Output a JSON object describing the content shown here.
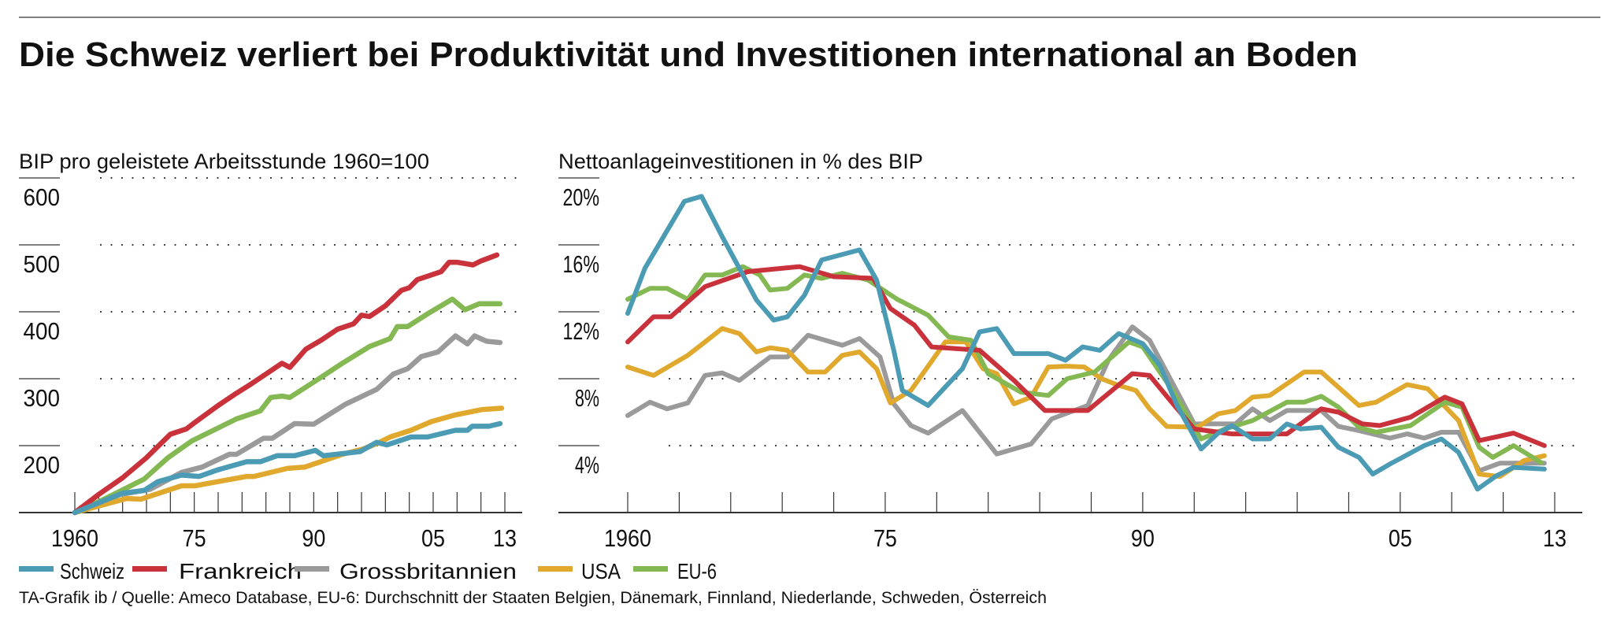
{
  "title": "Die Schweiz verliert bei Produktivität und Investitionen international an Boden",
  "legend": [
    {
      "name": "Schweiz",
      "color": "#4b9bb5"
    },
    {
      "name": "Frankreich",
      "color": "#c9323b"
    },
    {
      "name": "Grossbritannien",
      "color": "#9a9a9a"
    },
    {
      "name": "USA",
      "color": "#e0a82c"
    },
    {
      "name": "EU-6",
      "color": "#84b852"
    }
  ],
  "source": "TA-Grafik ib / Quelle: Ameco Database, EU-6: Durchschnitt der Staaten Belgien, Dänemark, Finnland, Niederlande, Schweden, Österreich",
  "chart_data": [
    {
      "type": "line",
      "title": "BIP pro geleistete Arbeitsstunde 1960=100",
      "ylim": [
        100,
        600
      ],
      "yticks": [
        200,
        300,
        400,
        500,
        600
      ],
      "ytick_labels": [
        "200",
        "300",
        "400",
        "500",
        "600"
      ],
      "xlim": [
        1960,
        2014
      ],
      "xticks": [
        1960,
        1975,
        1990,
        2005,
        2013
      ],
      "xtick_labels": [
        "1960",
        "75",
        "90",
        "05",
        "13"
      ],
      "grid": "dotted horizontal",
      "series": [
        {
          "name": "Schweiz",
          "x": [
            1960,
            1966,
            1968.7,
            1970.4,
            1973.4,
            1975.6,
            1978,
            1981.6,
            1983.3,
            1985.4,
            1987.6,
            1990.2,
            1991.2,
            1995.8,
            1997.9,
            1999.2,
            2002.2,
            2004.3,
            2007.8,
            2009.3,
            2009.9,
            2012,
            2013.4
          ],
          "y": [
            100,
            129,
            133,
            146,
            156,
            154,
            164,
            176,
            176,
            185,
            185,
            193,
            185,
            191,
            205,
            201,
            213,
            213,
            223,
            223,
            229,
            229,
            233
          ]
        },
        {
          "name": "Frankreich",
          "x": [
            1960,
            1963,
            1966,
            1969,
            1972,
            1974,
            1975,
            1978,
            1980,
            1982,
            1984,
            1986,
            1987,
            1989,
            1991,
            1993,
            1995,
            1996,
            1997,
            1999,
            2001,
            2002,
            2003,
            2005,
            2006,
            2007,
            2008,
            2010,
            2011,
            2013
          ],
          "y": [
            100,
            127,
            152,
            182,
            217,
            225,
            234,
            260,
            276,
            291,
            307,
            323,
            317,
            344,
            358,
            374,
            382,
            395,
            393,
            409,
            432,
            436,
            448,
            456,
            460,
            474,
            474,
            470,
            476,
            485
          ]
        },
        {
          "name": "Grossbritannien",
          "x": [
            1960,
            1965.7,
            1969.5,
            1973.4,
            1976,
            1979.4,
            1980.3,
            1983.7,
            1984.8,
            1987.6,
            1990,
            1994,
            1997.9,
            2000,
            2001.8,
            2003.5,
            2005.6,
            2007.8,
            2009.3,
            2010.2,
            2011.7,
            2013.4
          ],
          "y": [
            100,
            127,
            135,
            160,
            168,
            187,
            187,
            211,
            211,
            233,
            232,
            262,
            284,
            307,
            315,
            333,
            340,
            364,
            352,
            364,
            356,
            354
          ]
        },
        {
          "name": "USA",
          "x": [
            1960,
            1966.5,
            1968.3,
            1973.4,
            1975.1,
            1981.6,
            1982.5,
            1986.7,
            1988.9,
            1993.6,
            1996.2,
            1997.9,
            1999.6,
            2002.2,
            2004.8,
            2007.8,
            2011.2,
            2013.6
          ],
          "y": [
            100,
            121,
            120,
            140,
            140,
            154,
            154,
            166,
            168,
            187,
            195,
            203,
            213,
            223,
            236,
            246,
            254,
            256
          ]
        },
        {
          "name": "EU-6",
          "x": [
            1960,
            1963.5,
            1968.7,
            1971.7,
            1974.7,
            1980.3,
            1983.3,
            1984.6,
            1986,
            1987,
            1990,
            1993.6,
            1997,
            1999.6,
            2000.5,
            2001.8,
            2004.3,
            2007.4,
            2009,
            2010.8,
            2013.4
          ],
          "y": [
            100,
            119,
            150,
            182,
            207,
            240,
            252,
            272,
            274,
            272,
            295,
            323,
            348,
            360,
            378,
            378,
            397,
            419,
            403,
            412,
            412
          ]
        }
      ]
    },
    {
      "type": "line",
      "title": "Nettoanlageinvestitionen in % des BIP",
      "ylim": [
        0,
        20
      ],
      "yticks": [
        4,
        8,
        12,
        16,
        20
      ],
      "ytick_labels": [
        "4%",
        "8%",
        "12%",
        "16%",
        "20%"
      ],
      "xlim": [
        1960,
        2014
      ],
      "xticks": [
        1960,
        1975,
        1990,
        2005,
        2013
      ],
      "xtick_labels": [
        "1960",
        "75",
        "90",
        "05",
        "13"
      ],
      "grid": "dotted horizontal",
      "series": [
        {
          "name": "Schweiz",
          "x": [
            1960,
            1961,
            1963.3,
            1964.3,
            1965.5,
            1967.5,
            1968.5,
            1969.3,
            1970.3,
            1971.3,
            1973.5,
            1974.5,
            1975.5,
            1976,
            1977.5,
            1978.5,
            1979.5,
            1980.5,
            1981.5,
            1982.5,
            1984.5,
            1985.5,
            1986.5,
            1987.5,
            1988.6,
            1990,
            1991,
            1992,
            1993.4,
            1994.4,
            1995.2,
            1996.4,
            1997.4,
            1998.4,
            1999.2,
            2000.4,
            2001.4,
            2002.6,
            2003.4,
            2004.4,
            2006.4,
            2007.4,
            2008.4,
            2009.5,
            2010.6,
            2011.6,
            2013.4
          ],
          "y": [
            11.9,
            14.6,
            18.6,
            18.9,
            16.5,
            12.7,
            11.5,
            11.7,
            13.0,
            15.1,
            15.7,
            13.9,
            9.7,
            7.3,
            6.4,
            7.5,
            8.6,
            10.8,
            11.0,
            9.5,
            9.5,
            9.1,
            9.9,
            9.7,
            10.7,
            10.1,
            8.8,
            6.4,
            3.8,
            4.75,
            5.2,
            4.4,
            4.4,
            5.3,
            5.0,
            5.1,
            3.9,
            3.3,
            2.3,
            2.9,
            4.0,
            4.4,
            3.6,
            1.4,
            2.2,
            2.7,
            2.6
          ]
        },
        {
          "name": "Frankreich",
          "x": [
            1960,
            1961.5,
            1962.5,
            1964.5,
            1967,
            1970,
            1972,
            1974.3,
            1975.3,
            1976.7,
            1977.7,
            1980.5,
            1982.5,
            1984.3,
            1986.8,
            1989.4,
            1990.4,
            1991.6,
            1993,
            1995.2,
            1998.4,
            2000.4,
            2001.4,
            2002.8,
            2003.8,
            2005.6,
            2007.6,
            2008.6,
            2009.6,
            2011.6,
            2013.4
          ],
          "y": [
            10.2,
            11.7,
            11.7,
            13.5,
            14.4,
            14.7,
            14.1,
            14.0,
            12.2,
            11.2,
            9.9,
            9.7,
            7.9,
            6.1,
            6.1,
            8.3,
            8.2,
            6.7,
            5.0,
            4.7,
            4.7,
            6.2,
            6.0,
            5.3,
            5.2,
            5.7,
            6.9,
            6.5,
            4.3,
            4.75,
            4.0
          ]
        },
        {
          "name": "Grossbritannien",
          "x": [
            1960,
            1961.3,
            1962.3,
            1963.5,
            1964.5,
            1965.5,
            1966.5,
            1968.3,
            1969.3,
            1970.5,
            1972.5,
            1973.5,
            1974.7,
            1975.5,
            1976.5,
            1977.5,
            1979.5,
            1981.5,
            1983.5,
            1984.7,
            1986.8,
            1988,
            1989.4,
            1990.4,
            1991.6,
            1993,
            1995.4,
            1996.4,
            1997.4,
            1998.4,
            2000.4,
            2001.4,
            2002.6,
            2004.4,
            2005.4,
            2006.4,
            2007.4,
            2008.4,
            2009.6,
            2010.8,
            2013.4
          ],
          "y": [
            5.8,
            6.6,
            6.2,
            6.55,
            8.2,
            8.35,
            7.9,
            9.3,
            9.3,
            10.6,
            10.0,
            10.4,
            9.3,
            6.5,
            5.2,
            4.75,
            6.1,
            3.5,
            4.1,
            5.6,
            6.4,
            9.1,
            11.1,
            10.3,
            8.0,
            5.3,
            5.3,
            6.2,
            5.5,
            6.1,
            6.1,
            5.15,
            4.9,
            4.45,
            4.7,
            4.45,
            4.8,
            4.8,
            2.5,
            2.95,
            2.95
          ]
        },
        {
          "name": "USA",
          "x": [
            1960,
            1961.5,
            1963.5,
            1965.5,
            1966.5,
            1967.5,
            1968.3,
            1969.3,
            1970.5,
            1971.5,
            1972.5,
            1973.5,
            1974.5,
            1975.3,
            1976.5,
            1978.5,
            1979.7,
            1980.7,
            1981.5,
            1982.5,
            1983.5,
            1984.5,
            1985.6,
            1986.6,
            1987.6,
            1988.6,
            1989.6,
            1990.4,
            1991.4,
            1993.2,
            1994.4,
            1995.4,
            1996.4,
            1997.4,
            1999.4,
            2000.4,
            2002.6,
            2003.6,
            2005.4,
            2006.6,
            2008.4,
            2009.6,
            2010.8,
            2012.2,
            2013.4
          ],
          "y": [
            8.7,
            8.2,
            9.4,
            11.0,
            10.7,
            9.6,
            9.85,
            9.7,
            8.4,
            8.4,
            9.4,
            9.6,
            8.6,
            6.55,
            7.3,
            10.2,
            10.2,
            8.6,
            8.3,
            6.5,
            6.9,
            8.7,
            8.75,
            8.7,
            8.0,
            7.6,
            7.3,
            6.2,
            5.15,
            5.1,
            5.9,
            6.1,
            6.9,
            7.0,
            8.4,
            8.4,
            6.4,
            6.6,
            7.65,
            7.4,
            5.5,
            2.3,
            2.15,
            3.1,
            3.4
          ]
        },
        {
          "name": "EU-6",
          "x": [
            1960,
            1961.3,
            1962.3,
            1963.5,
            1964.5,
            1965.5,
            1966.7,
            1967.7,
            1968.3,
            1969.3,
            1970.3,
            1971.3,
            1972.5,
            1974,
            1975.7,
            1977.5,
            1978.7,
            1980,
            1981,
            1982.9,
            1984.5,
            1985.6,
            1987.2,
            1989.2,
            1990,
            1991.6,
            1993.4,
            1994.8,
            1996.4,
            1998.4,
            1999.4,
            2000.4,
            2001.4,
            2002.6,
            2003.6,
            2005.6,
            2007.6,
            2008.6,
            2009.6,
            2010.4,
            2011.6,
            2013.2
          ],
          "y": [
            12.75,
            13.4,
            13.4,
            12.75,
            14.2,
            14.2,
            14.7,
            14.2,
            13.3,
            13.4,
            14.2,
            14.0,
            14.3,
            13.9,
            12.75,
            11.8,
            10.5,
            10.3,
            8.3,
            7.2,
            7.0,
            8.0,
            8.4,
            10.2,
            9.9,
            7.5,
            4.4,
            5.0,
            5.5,
            6.6,
            6.6,
            6.95,
            6.3,
            5.1,
            4.8,
            5.2,
            6.6,
            6.3,
            3.9,
            3.3,
            4.0,
            3.0
          ]
        }
      ]
    }
  ]
}
